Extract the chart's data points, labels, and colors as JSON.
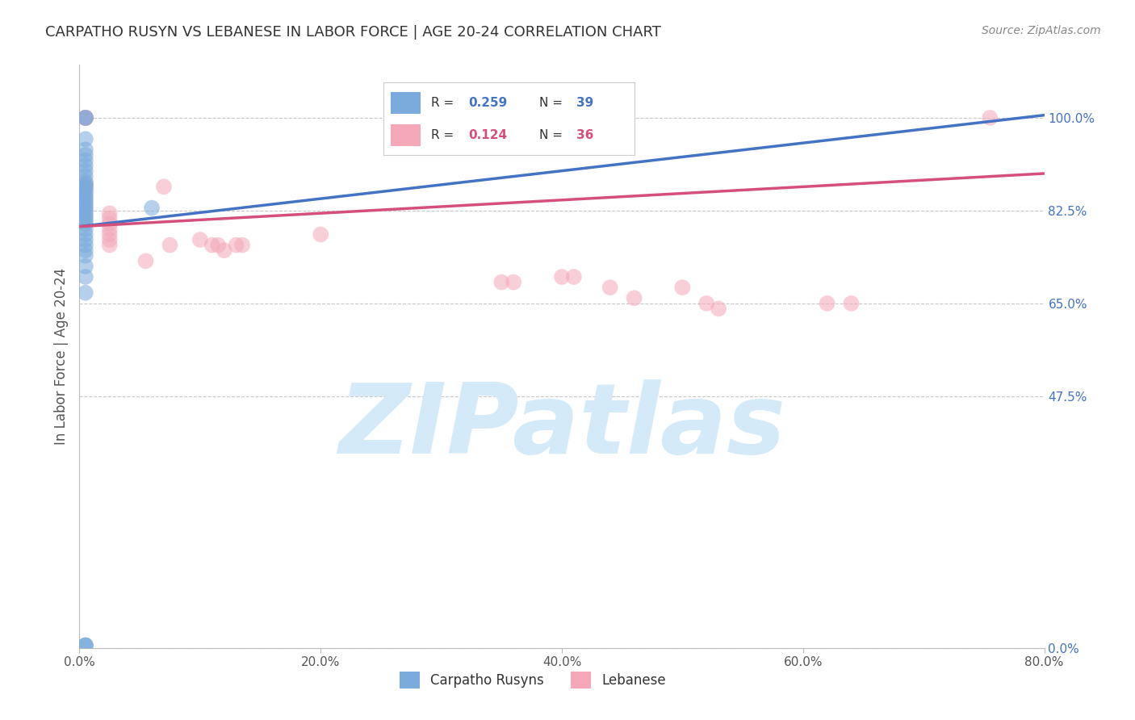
{
  "title": "CARPATHO RUSYN VS LEBANESE IN LABOR FORCE | AGE 20-24 CORRELATION CHART",
  "source": "Source: ZipAtlas.com",
  "ylabel": "In Labor Force | Age 20-24",
  "xlim": [
    0.0,
    0.8
  ],
  "ylim": [
    0.0,
    1.1
  ],
  "yticks": [
    0.0,
    0.475,
    0.65,
    0.825,
    1.0
  ],
  "ytick_labels": [
    "0.0%",
    "47.5%",
    "65.0%",
    "82.5%",
    "100.0%"
  ],
  "xticks": [
    0.0,
    0.2,
    0.4,
    0.6,
    0.8
  ],
  "xtick_labels": [
    "0.0%",
    "20.0%",
    "40.0%",
    "60.0%",
    "80.0%"
  ],
  "carpatho_rusyn_x": [
    0.005,
    0.005,
    0.005,
    0.005,
    0.005,
    0.005,
    0.005,
    0.005,
    0.005,
    0.005,
    0.005,
    0.005,
    0.005,
    0.005,
    0.005,
    0.005,
    0.005,
    0.005,
    0.005,
    0.005,
    0.005,
    0.005,
    0.005,
    0.005,
    0.005,
    0.005,
    0.005,
    0.005,
    0.005,
    0.005,
    0.005,
    0.005,
    0.005,
    0.005,
    0.005,
    0.06,
    0.005,
    0.005,
    0.005
  ],
  "carpatho_rusyn_y": [
    1.0,
    1.0,
    0.96,
    0.94,
    0.93,
    0.92,
    0.91,
    0.9,
    0.89,
    0.88,
    0.875,
    0.87,
    0.865,
    0.86,
    0.855,
    0.85,
    0.845,
    0.84,
    0.835,
    0.83,
    0.825,
    0.82,
    0.815,
    0.81,
    0.805,
    0.8,
    0.79,
    0.78,
    0.77,
    0.76,
    0.75,
    0.74,
    0.72,
    0.7,
    0.67,
    0.83,
    0.005,
    0.005,
    0.005
  ],
  "lebanese_x": [
    0.005,
    0.005,
    0.005,
    0.005,
    0.005,
    0.005,
    0.005,
    0.025,
    0.025,
    0.025,
    0.025,
    0.025,
    0.025,
    0.025,
    0.055,
    0.07,
    0.075,
    0.1,
    0.11,
    0.115,
    0.12,
    0.13,
    0.135,
    0.2,
    0.35,
    0.36,
    0.4,
    0.41,
    0.44,
    0.46,
    0.5,
    0.52,
    0.53,
    0.62,
    0.64,
    0.755
  ],
  "lebanese_y": [
    1.0,
    1.0,
    1.0,
    1.0,
    1.0,
    0.875,
    0.87,
    0.82,
    0.81,
    0.8,
    0.79,
    0.78,
    0.77,
    0.76,
    0.73,
    0.87,
    0.76,
    0.77,
    0.76,
    0.76,
    0.75,
    0.76,
    0.76,
    0.78,
    0.69,
    0.69,
    0.7,
    0.7,
    0.68,
    0.66,
    0.68,
    0.65,
    0.64,
    0.65,
    0.65,
    1.0
  ],
  "blue_line_x": [
    0.0,
    0.8
  ],
  "blue_line_y": [
    0.795,
    1.005
  ],
  "pink_line_x": [
    0.0,
    0.8
  ],
  "pink_line_y": [
    0.795,
    0.895
  ],
  "blue_color": "#7aabdc",
  "pink_color": "#f4a8b8",
  "blue_line_color": "#4472C4",
  "pink_line_color": "#d4507a",
  "background_color": "#ffffff",
  "grid_color": "#c8c8c8",
  "watermark": "ZIPatlas",
  "watermark_color": "#d5eaf8",
  "title_color": "#333333",
  "axis_label_color": "#555555",
  "right_tick_color": "#4472C4",
  "legend_r1": "0.259",
  "legend_n1": "39",
  "legend_r2": "0.124",
  "legend_n2": "36"
}
